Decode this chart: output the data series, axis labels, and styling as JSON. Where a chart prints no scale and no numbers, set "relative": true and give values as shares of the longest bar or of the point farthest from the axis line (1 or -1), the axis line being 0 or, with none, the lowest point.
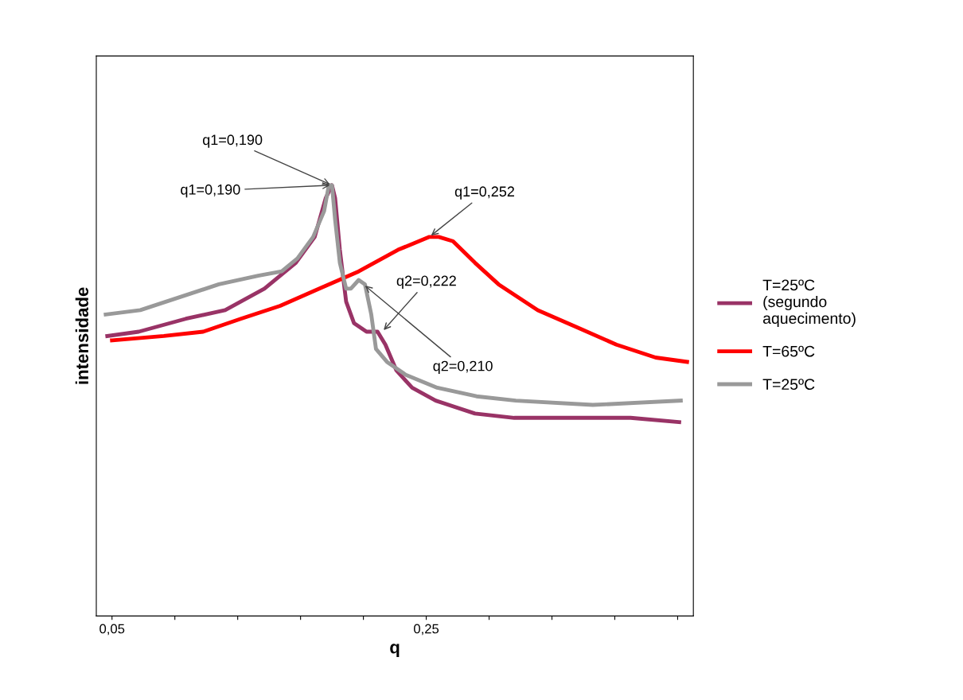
{
  "chart_data": {
    "type": "line",
    "relative": true,
    "xlabel": "q",
    "ylabel": "intensidade",
    "xlim": [
      0.04,
      0.42
    ],
    "xticks": [
      {
        "value": 0.05,
        "label": "0,05"
      },
      {
        "value": 0.09,
        "label": null
      },
      {
        "value": 0.13,
        "label": null
      },
      {
        "value": 0.17,
        "label": null
      },
      {
        "value": 0.21,
        "label": null
      },
      {
        "value": 0.25,
        "label": "0,25"
      },
      {
        "value": 0.29,
        "label": null
      },
      {
        "value": 0.33,
        "label": null
      },
      {
        "value": 0.37,
        "label": null
      },
      {
        "value": 0.41,
        "label": null
      }
    ],
    "legend": "right",
    "grid": false,
    "marker": "none",
    "line_style": "solid",
    "series": [
      {
        "name": "T=25ºC (segundo aquecimento)",
        "color": "#993366",
        "x": [
          0.047,
          0.067,
          0.097,
          0.122,
          0.147,
          0.167,
          0.179,
          0.186,
          0.19,
          0.192,
          0.195,
          0.199,
          0.204,
          0.212,
          0.219,
          0.224,
          0.231,
          0.241,
          0.256,
          0.281,
          0.306,
          0.33,
          0.355,
          0.38,
          0.411
        ],
        "values": [
          0.65,
          0.66,
          0.69,
          0.71,
          0.76,
          0.82,
          0.88,
          0.97,
          1.0,
          0.97,
          0.85,
          0.73,
          0.68,
          0.66,
          0.66,
          0.63,
          0.57,
          0.53,
          0.5,
          0.47,
          0.46,
          0.46,
          0.46,
          0.46,
          0.45
        ]
      },
      {
        "name": "T=65ºC",
        "color": "#ff0000",
        "x": [
          0.05,
          0.083,
          0.108,
          0.132,
          0.157,
          0.182,
          0.207,
          0.232,
          0.252,
          0.258,
          0.267,
          0.281,
          0.296,
          0.321,
          0.346,
          0.371,
          0.396,
          0.416
        ],
        "values": [
          0.64,
          0.65,
          0.66,
          0.69,
          0.72,
          0.76,
          0.8,
          0.85,
          0.88,
          0.88,
          0.87,
          0.82,
          0.77,
          0.71,
          0.67,
          0.63,
          0.6,
          0.59
        ]
      },
      {
        "name": "T=25ºC",
        "color": "#999999",
        "x": [
          0.046,
          0.068,
          0.093,
          0.118,
          0.143,
          0.158,
          0.168,
          0.178,
          0.185,
          0.188,
          0.19,
          0.192,
          0.195,
          0.199,
          0.202,
          0.207,
          0.211,
          0.215,
          0.218,
          0.225,
          0.237,
          0.257,
          0.282,
          0.307,
          0.356,
          0.412
        ],
        "values": [
          0.7,
          0.71,
          0.74,
          0.77,
          0.79,
          0.8,
          0.83,
          0.88,
          0.94,
          1.0,
          1.0,
          0.92,
          0.82,
          0.76,
          0.76,
          0.78,
          0.77,
          0.7,
          0.62,
          0.59,
          0.56,
          0.53,
          0.51,
          0.5,
          0.49,
          0.5
        ]
      }
    ],
    "annotations": [
      {
        "text": "q1=0,190",
        "x": 0.19,
        "y": 1.0
      },
      {
        "text": "q2=0,222",
        "x": 0.222,
        "y": 0.66
      },
      {
        "text": "q1=0,252",
        "x": 0.252,
        "y": 0.88
      },
      {
        "text": "q1=0,190",
        "x": 0.19,
        "y": 1.0
      },
      {
        "text": "q2=0,210",
        "x": 0.21,
        "y": 0.77
      }
    ]
  }
}
